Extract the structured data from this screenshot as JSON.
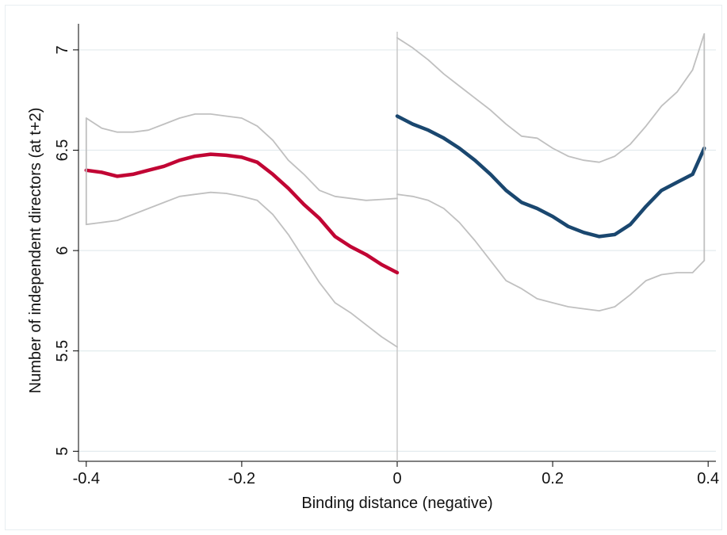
{
  "chart_data": {
    "type": "line",
    "title": "",
    "xlabel": "Binding distance (negative)",
    "ylabel": "Number of independent directors (at t+2)",
    "xlim": [
      -0.41,
      0.41
    ],
    "ylim": [
      4.95,
      7.13
    ],
    "x_ticks": [
      -0.4,
      -0.2,
      0,
      0.2,
      0.4
    ],
    "x_tick_labels": [
      "-0.4",
      "-0.2",
      "0",
      "0.2",
      "0.4"
    ],
    "y_ticks": [
      5,
      5.5,
      6,
      6.5,
      7
    ],
    "y_tick_labels": [
      "5",
      "5.5",
      "6",
      "6.5",
      "7"
    ],
    "grid": "horizontal",
    "cutoff": 0,
    "series": [
      {
        "color": "#c10534",
        "role": "estimate-left",
        "x": [
          -0.4,
          -0.38,
          -0.36,
          -0.34,
          -0.32,
          -0.3,
          -0.28,
          -0.26,
          -0.24,
          -0.22,
          -0.2,
          -0.18,
          -0.16,
          -0.14,
          -0.12,
          -0.1,
          -0.08,
          -0.06,
          -0.04,
          -0.02,
          0.0
        ],
        "y": [
          6.4,
          6.39,
          6.37,
          6.38,
          6.4,
          6.42,
          6.45,
          6.47,
          6.48,
          6.475,
          6.465,
          6.44,
          6.38,
          6.31,
          6.23,
          6.16,
          6.07,
          6.02,
          5.98,
          5.93,
          5.89
        ]
      },
      {
        "color": "#c0c0c0",
        "role": "ci-upper-left",
        "x": [
          -0.4,
          -0.38,
          -0.36,
          -0.34,
          -0.32,
          -0.3,
          -0.28,
          -0.26,
          -0.24,
          -0.22,
          -0.2,
          -0.18,
          -0.16,
          -0.14,
          -0.12,
          -0.1,
          -0.08,
          -0.06,
          -0.04,
          -0.02,
          0.0
        ],
        "y": [
          6.66,
          6.61,
          6.59,
          6.59,
          6.6,
          6.63,
          6.66,
          6.68,
          6.68,
          6.67,
          6.66,
          6.62,
          6.55,
          6.45,
          6.38,
          6.3,
          6.27,
          6.26,
          6.25,
          6.255,
          6.26
        ]
      },
      {
        "color": "#c0c0c0",
        "role": "ci-lower-left",
        "x": [
          -0.4,
          -0.38,
          -0.36,
          -0.34,
          -0.32,
          -0.3,
          -0.28,
          -0.26,
          -0.24,
          -0.22,
          -0.2,
          -0.18,
          -0.16,
          -0.14,
          -0.12,
          -0.1,
          -0.08,
          -0.06,
          -0.04,
          -0.02,
          0.0
        ],
        "y": [
          6.13,
          6.14,
          6.15,
          6.18,
          6.21,
          6.24,
          6.27,
          6.28,
          6.29,
          6.285,
          6.27,
          6.25,
          6.18,
          6.08,
          5.96,
          5.84,
          5.74,
          5.69,
          5.63,
          5.57,
          5.52
        ]
      },
      {
        "color": "#1a476f",
        "role": "estimate-right",
        "x": [
          0.0,
          0.02,
          0.04,
          0.06,
          0.08,
          0.1,
          0.12,
          0.14,
          0.16,
          0.18,
          0.2,
          0.22,
          0.24,
          0.26,
          0.28,
          0.3,
          0.32,
          0.34,
          0.36,
          0.38,
          0.395
        ],
        "y": [
          6.67,
          6.63,
          6.6,
          6.56,
          6.51,
          6.45,
          6.38,
          6.3,
          6.24,
          6.21,
          6.17,
          6.12,
          6.09,
          6.07,
          6.08,
          6.13,
          6.22,
          6.3,
          6.34,
          6.38,
          6.51
        ]
      },
      {
        "color": "#c0c0c0",
        "role": "ci-upper-right",
        "x": [
          0.0,
          0.02,
          0.04,
          0.06,
          0.08,
          0.1,
          0.12,
          0.14,
          0.16,
          0.18,
          0.2,
          0.22,
          0.24,
          0.26,
          0.28,
          0.3,
          0.32,
          0.34,
          0.36,
          0.38,
          0.395
        ],
        "y": [
          7.06,
          7.01,
          6.95,
          6.88,
          6.82,
          6.76,
          6.7,
          6.63,
          6.57,
          6.56,
          6.51,
          6.47,
          6.45,
          6.44,
          6.47,
          6.53,
          6.62,
          6.72,
          6.79,
          6.9,
          7.08
        ]
      },
      {
        "color": "#c0c0c0",
        "role": "ci-lower-right",
        "x": [
          0.0,
          0.02,
          0.04,
          0.06,
          0.08,
          0.1,
          0.12,
          0.14,
          0.16,
          0.18,
          0.2,
          0.22,
          0.24,
          0.26,
          0.28,
          0.3,
          0.32,
          0.34,
          0.36,
          0.38,
          0.395
        ],
        "y": [
          6.28,
          6.27,
          6.25,
          6.21,
          6.14,
          6.05,
          5.95,
          5.85,
          5.81,
          5.76,
          5.74,
          5.72,
          5.71,
          5.7,
          5.72,
          5.78,
          5.85,
          5.88,
          5.89,
          5.89,
          5.95
        ]
      }
    ]
  }
}
